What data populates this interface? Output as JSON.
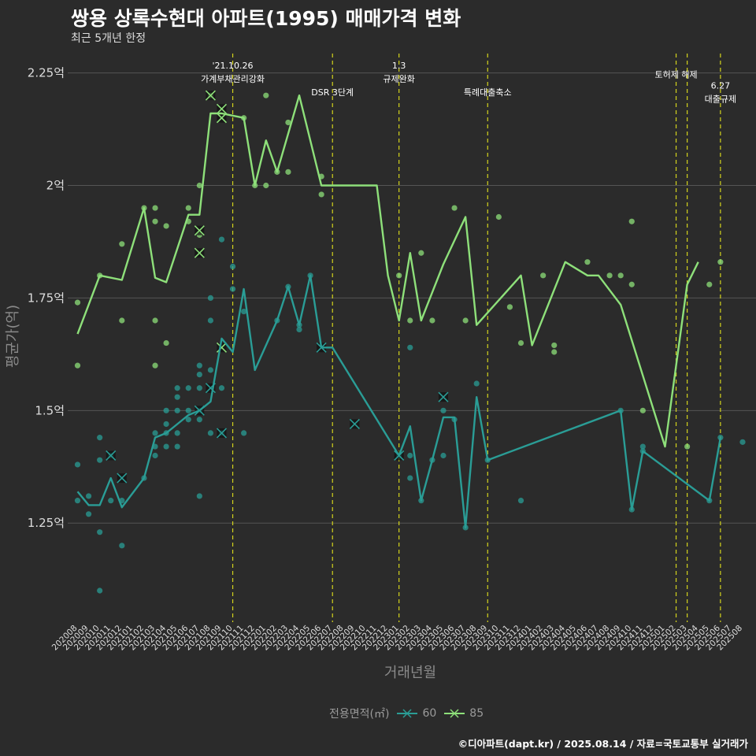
{
  "title": "쌍용 상록수현대 아파트(1995) 매매가격 변화",
  "subtitle": "최근 5개년 한정",
  "credit": "©디아파트(dapt.kr) / 2025.08.14 / 자료=국토교통부 실거래가",
  "colors": {
    "background": "#2b2b2b",
    "grid": "#555555",
    "series_60": "#2a9d96",
    "series_85": "#8ee07a",
    "event_line": "#d4d41c"
  },
  "chart_data": {
    "type": "line",
    "xlabel": "거래년월",
    "ylabel": "평균가(억)",
    "ylim": [
      1.03,
      2.3
    ],
    "yticks": [
      1.25,
      1.5,
      1.75,
      2.0,
      2.25
    ],
    "ytick_labels": [
      "1.25억",
      "1.5억",
      "1.75억",
      "2억",
      "2.25억"
    ],
    "grid": true,
    "categories": [
      "202008",
      "202009",
      "202010",
      "202011",
      "202012",
      "202101",
      "202102",
      "202103",
      "202104",
      "202105",
      "202106",
      "202107",
      "202108",
      "202109",
      "202110",
      "202111",
      "202112",
      "202201",
      "202202",
      "202203",
      "202204",
      "202205",
      "202206",
      "202207",
      "202208",
      "202209",
      "202210",
      "202211",
      "202212",
      "202301",
      "202302",
      "202303",
      "202304",
      "202305",
      "202306",
      "202307",
      "202308",
      "202309",
      "202310",
      "202311",
      "202312",
      "202401",
      "202402",
      "202403",
      "202404",
      "202405",
      "202406",
      "202407",
      "202408",
      "202409",
      "202410",
      "202411",
      "202412",
      "202501",
      "202502",
      "202503",
      "202504",
      "202505",
      "202506",
      "202507",
      "202508"
    ],
    "legend": {
      "title": "전용면적(㎡)",
      "position": "bottom",
      "entries": [
        "60",
        "85"
      ]
    },
    "series": [
      {
        "name": "60",
        "line": [
          [
            0,
            1.32
          ],
          [
            1,
            1.29
          ],
          [
            2,
            1.29
          ],
          [
            3,
            1.35
          ],
          [
            4,
            1.285
          ],
          [
            6,
            1.35
          ],
          [
            7,
            1.44
          ],
          [
            8,
            1.45
          ],
          [
            9,
            1.47
          ],
          [
            10,
            1.49
          ],
          [
            11,
            1.5
          ],
          [
            12,
            1.52
          ],
          [
            13,
            1.66
          ],
          [
            14,
            1.63
          ],
          [
            15,
            1.77
          ],
          [
            16,
            1.59
          ],
          [
            18,
            1.7
          ],
          [
            19,
            1.775
          ],
          [
            20,
            1.69
          ],
          [
            21,
            1.8
          ],
          [
            22,
            1.64
          ],
          [
            23,
            1.64
          ],
          [
            29,
            1.4
          ],
          [
            30,
            1.465
          ],
          [
            31,
            1.3
          ],
          [
            32,
            1.39
          ],
          [
            33,
            1.485
          ],
          [
            34,
            1.485
          ],
          [
            35,
            1.24
          ],
          [
            36,
            1.53
          ],
          [
            37,
            1.39
          ],
          [
            49,
            1.5
          ],
          [
            50,
            1.28
          ],
          [
            51,
            1.41
          ],
          [
            57,
            1.3
          ],
          [
            58,
            1.44
          ]
        ],
        "points": [
          [
            0,
            1.38
          ],
          [
            0,
            1.3
          ],
          [
            1,
            1.31
          ],
          [
            1,
            1.27
          ],
          [
            2,
            1.44
          ],
          [
            2,
            1.39
          ],
          [
            2,
            1.23
          ],
          [
            2,
            1.1
          ],
          [
            3,
            1.4
          ],
          [
            3,
            1.3
          ],
          [
            4,
            1.3
          ],
          [
            4,
            1.2
          ],
          [
            6,
            1.35
          ],
          [
            7,
            1.45
          ],
          [
            7,
            1.42
          ],
          [
            7,
            1.4
          ],
          [
            8,
            1.5
          ],
          [
            8,
            1.47
          ],
          [
            8,
            1.45
          ],
          [
            8,
            1.42
          ],
          [
            9,
            1.55
          ],
          [
            9,
            1.53
          ],
          [
            9,
            1.5
          ],
          [
            9,
            1.45
          ],
          [
            9,
            1.42
          ],
          [
            10,
            1.55
          ],
          [
            10,
            1.5
          ],
          [
            10,
            1.48
          ],
          [
            11,
            1.6
          ],
          [
            11,
            1.58
          ],
          [
            11,
            1.55
          ],
          [
            11,
            1.5
          ],
          [
            11,
            1.48
          ],
          [
            11,
            1.31
          ],
          [
            12,
            1.75
          ],
          [
            12,
            1.7
          ],
          [
            12,
            1.59
          ],
          [
            12,
            1.45
          ],
          [
            13,
            1.88
          ],
          [
            13,
            1.55
          ],
          [
            13,
            1.45
          ],
          [
            14,
            1.82
          ],
          [
            14,
            1.77
          ],
          [
            15,
            1.72
          ],
          [
            15,
            1.45
          ],
          [
            18,
            1.7
          ],
          [
            19,
            1.775
          ],
          [
            20,
            1.69
          ],
          [
            20,
            1.68
          ],
          [
            21,
            1.8
          ],
          [
            29,
            1.4
          ],
          [
            30,
            1.64
          ],
          [
            30,
            1.4
          ],
          [
            30,
            1.35
          ],
          [
            31,
            1.3
          ],
          [
            32,
            1.39
          ],
          [
            33,
            1.5
          ],
          [
            33,
            1.4
          ],
          [
            34,
            1.48
          ],
          [
            35,
            1.24
          ],
          [
            36,
            1.56
          ],
          [
            37,
            1.39
          ],
          [
            40,
            1.3
          ],
          [
            49,
            1.5
          ],
          [
            50,
            1.28
          ],
          [
            51,
            1.42
          ],
          [
            51,
            1.41
          ],
          [
            57,
            1.3
          ],
          [
            58,
            1.44
          ],
          [
            60,
            1.43
          ]
        ],
        "cancelled": [
          [
            3,
            1.4
          ],
          [
            4,
            1.35
          ],
          [
            11,
            1.5
          ],
          [
            12,
            1.55
          ],
          [
            13,
            1.45
          ],
          [
            22,
            1.64
          ],
          [
            25,
            1.47
          ],
          [
            29,
            1.4
          ],
          [
            33,
            1.53
          ]
        ]
      },
      {
        "name": "85",
        "line": [
          [
            0,
            1.67
          ],
          [
            2,
            1.8
          ],
          [
            4,
            1.79
          ],
          [
            6,
            1.95
          ],
          [
            7,
            1.795
          ],
          [
            8,
            1.785
          ],
          [
            10,
            1.935
          ],
          [
            11,
            1.935
          ],
          [
            12,
            2.16
          ],
          [
            13,
            2.16
          ],
          [
            15,
            2.15
          ],
          [
            16,
            2.0
          ],
          [
            17,
            2.1
          ],
          [
            18,
            2.03
          ],
          [
            20,
            2.2
          ],
          [
            22,
            2.0
          ],
          [
            24,
            2.0
          ],
          [
            25,
            2.0
          ],
          [
            27,
            2.0
          ],
          [
            28,
            1.8
          ],
          [
            29,
            1.7
          ],
          [
            30,
            1.85
          ],
          [
            31,
            1.7
          ],
          [
            33,
            1.825
          ],
          [
            35,
            1.93
          ],
          [
            36,
            1.69
          ],
          [
            40,
            1.8
          ],
          [
            41,
            1.645
          ],
          [
            44,
            1.83
          ],
          [
            46,
            1.8
          ],
          [
            47,
            1.8
          ],
          [
            49,
            1.735
          ],
          [
            53,
            1.42
          ],
          [
            55,
            1.78
          ],
          [
            56,
            1.83
          ]
        ],
        "points": [
          [
            0,
            1.74
          ],
          [
            0,
            1.6
          ],
          [
            2,
            1.8
          ],
          [
            4,
            1.87
          ],
          [
            4,
            1.7
          ],
          [
            6,
            1.95
          ],
          [
            7,
            1.95
          ],
          [
            7,
            1.92
          ],
          [
            7,
            1.7
          ],
          [
            7,
            1.6
          ],
          [
            8,
            1.91
          ],
          [
            8,
            1.65
          ],
          [
            10,
            1.95
          ],
          [
            10,
            1.92
          ],
          [
            11,
            2.0
          ],
          [
            11,
            1.89
          ],
          [
            12,
            2.2
          ],
          [
            15,
            2.15
          ],
          [
            16,
            2.0
          ],
          [
            17,
            2.2
          ],
          [
            17,
            2.0
          ],
          [
            18,
            2.03
          ],
          [
            19,
            2.14
          ],
          [
            19,
            2.03
          ],
          [
            22,
            2.02
          ],
          [
            22,
            1.98
          ],
          [
            29,
            1.8
          ],
          [
            30,
            1.7
          ],
          [
            31,
            1.85
          ],
          [
            32,
            1.7
          ],
          [
            34,
            1.95
          ],
          [
            35,
            1.7
          ],
          [
            38,
            1.93
          ],
          [
            39,
            1.73
          ],
          [
            40,
            1.65
          ],
          [
            42,
            1.8
          ],
          [
            43,
            1.645
          ],
          [
            43,
            1.63
          ],
          [
            46,
            1.83
          ],
          [
            48,
            1.8
          ],
          [
            49,
            1.8
          ],
          [
            50,
            1.92
          ],
          [
            50,
            1.78
          ],
          [
            51,
            1.5
          ],
          [
            55,
            1.42
          ],
          [
            57,
            1.78
          ],
          [
            58,
            1.83
          ]
        ],
        "cancelled": [
          [
            11,
            1.9
          ],
          [
            11,
            1.85
          ],
          [
            12,
            2.2
          ],
          [
            13,
            2.17
          ],
          [
            13,
            2.15
          ],
          [
            13,
            1.64
          ]
        ]
      }
    ],
    "events": [
      {
        "x": 14,
        "label": "'21.10.26\n가계부채관리강화",
        "label_y": 2.26
      },
      {
        "x": 23,
        "label": "DSR 3단계",
        "label_y": 2.2
      },
      {
        "x": 29,
        "label": "1.3\n규제완화",
        "label_y": 2.26
      },
      {
        "x": 37,
        "label": "특례대출축소",
        "label_y": 2.2
      },
      {
        "x": 54,
        "label": "토허제 해제",
        "label_y": 2.24
      },
      {
        "x": 55,
        "label": "",
        "label_y": 2.24
      },
      {
        "x": 58,
        "label": "6.27\n대출규제",
        "label_y": 2.215
      }
    ]
  }
}
